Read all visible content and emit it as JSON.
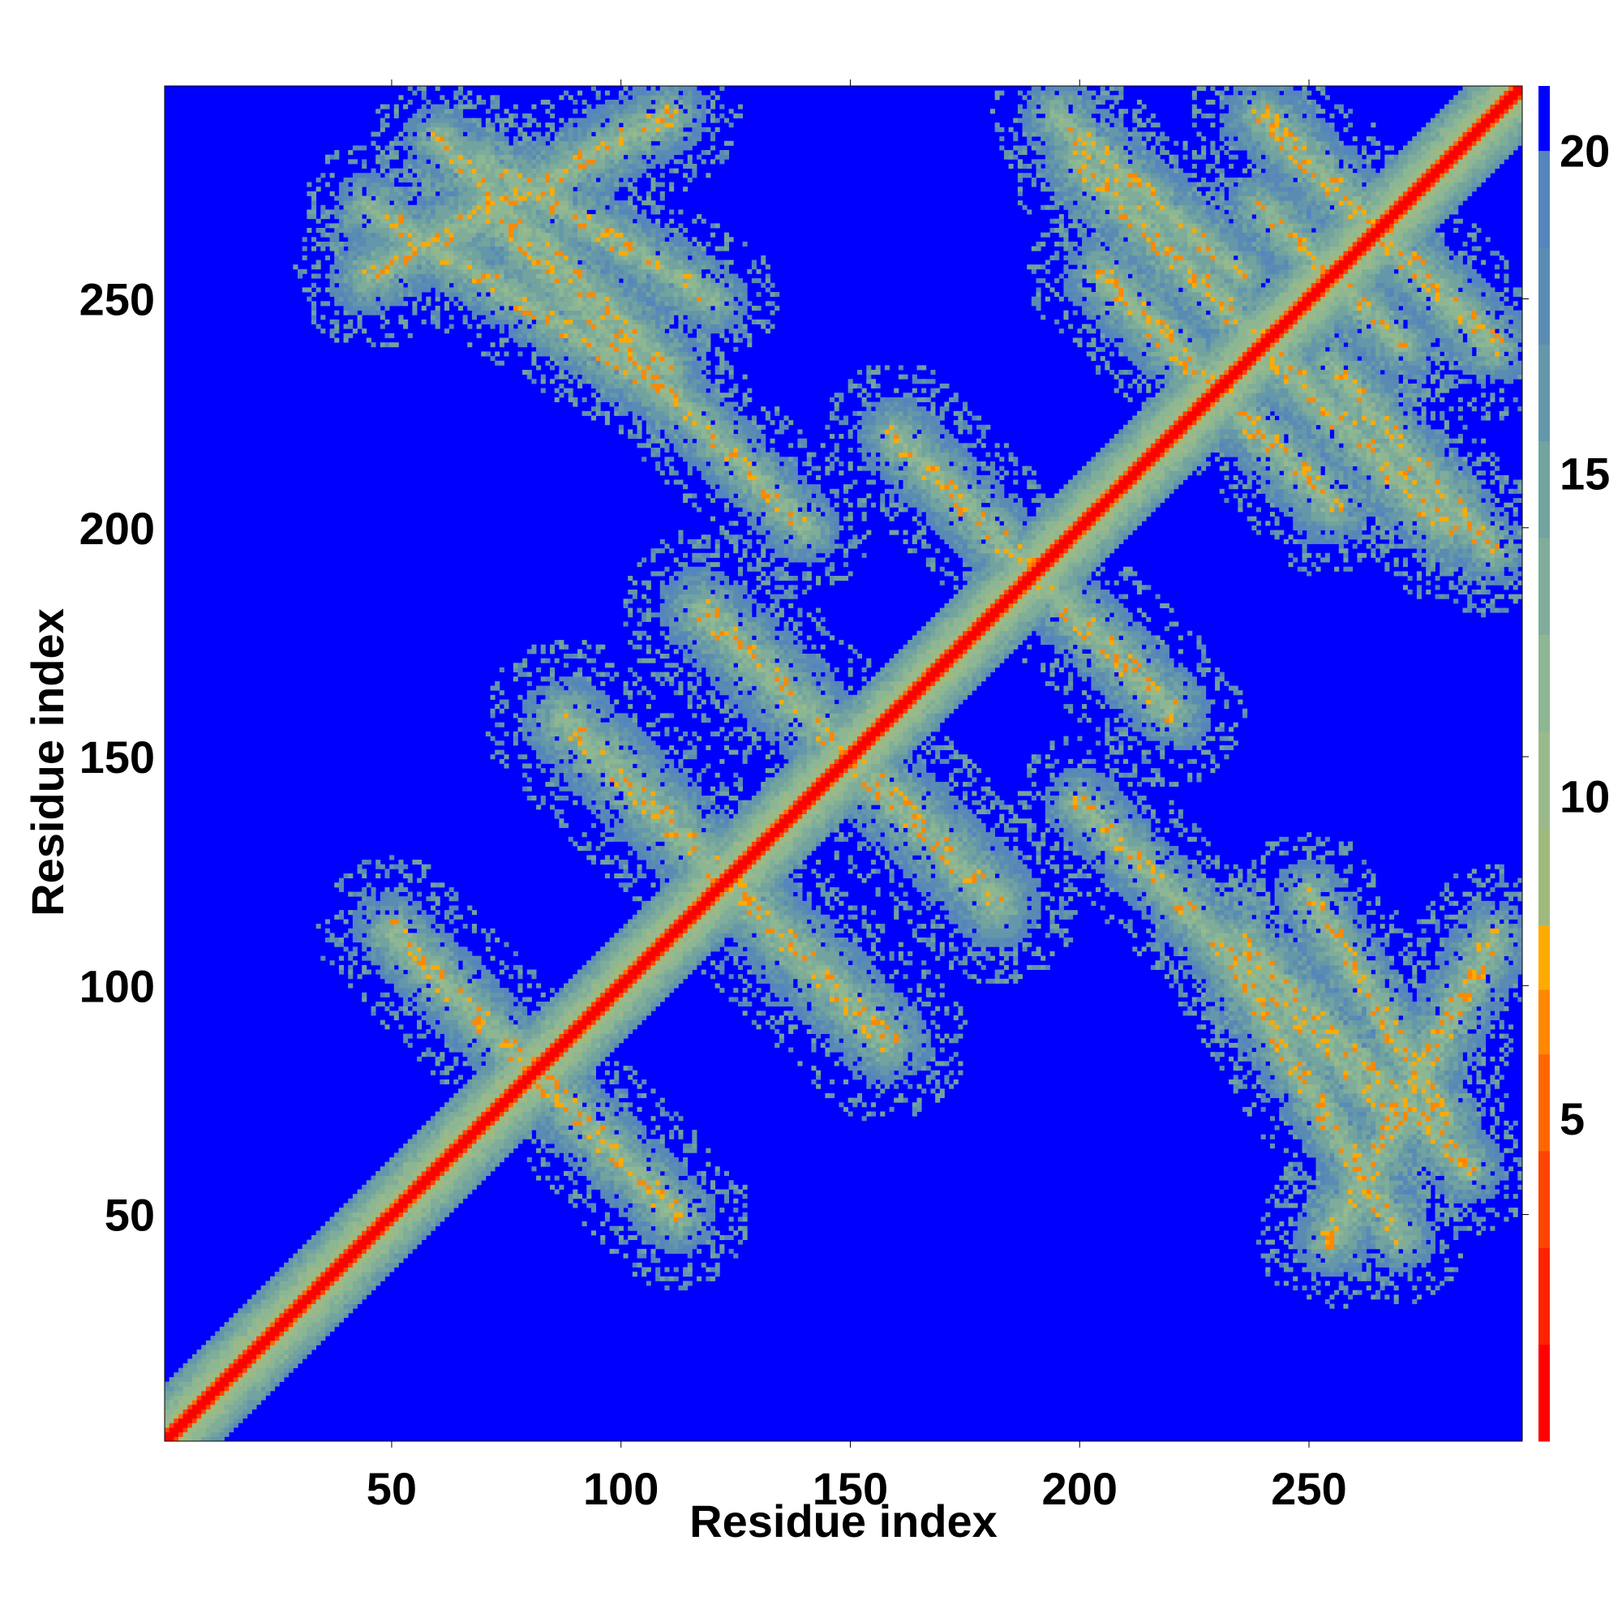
{
  "chart_data": {
    "type": "heatmap",
    "title": "",
    "xlabel": "Residue index",
    "ylabel": "Residue index",
    "n_residues": 296,
    "xlim": [
      1,
      296
    ],
    "ylim": [
      1,
      296
    ],
    "x_ticks": [
      50,
      100,
      150,
      200,
      250
    ],
    "y_ticks": [
      50,
      100,
      150,
      200,
      250
    ],
    "grid": false,
    "colorbar": {
      "placement": "right",
      "ticks": [
        5,
        10,
        15,
        20
      ],
      "range": [
        0,
        21
      ],
      "levels": [
        {
          "max": 1.5,
          "color": "#ff0000"
        },
        {
          "max": 3,
          "color": "#ff2200"
        },
        {
          "max": 4.5,
          "color": "#ff4400"
        },
        {
          "max": 6,
          "color": "#ff6600"
        },
        {
          "max": 7,
          "color": "#ff8800"
        },
        {
          "max": 8,
          "color": "#ffaa00"
        },
        {
          "max": 9.5,
          "color": "#9fba7c"
        },
        {
          "max": 11,
          "color": "#9ab98a"
        },
        {
          "max": 12.5,
          "color": "#8db693"
        },
        {
          "max": 14,
          "color": "#7fad9a"
        },
        {
          "max": 15.5,
          "color": "#72a39f"
        },
        {
          "max": 17,
          "color": "#6497aa"
        },
        {
          "max": 18.5,
          "color": "#5a8bb3"
        },
        {
          "max": 20,
          "color": "#5585bd"
        },
        {
          "max": 21,
          "color": "#0000ff"
        }
      ]
    },
    "background_distance": 21,
    "features": {
      "diagonal": {
        "core_color_value": 0.5
      },
      "contact_bands": [
        {
          "dir": "anti",
          "from": [
            50,
            112
          ],
          "to": [
            112,
            50
          ],
          "width": 9
        },
        {
          "dir": "anti",
          "from": [
            88,
            158
          ],
          "to": [
            158,
            88
          ],
          "width": 10
        },
        {
          "dir": "anti",
          "from": [
            118,
            182
          ],
          "to": [
            182,
            118
          ],
          "width": 10
        },
        {
          "dir": "anti",
          "from": [
            45,
            270
          ],
          "to": [
            110,
            230
          ],
          "width": 8
        },
        {
          "dir": "anti",
          "from": [
            160,
            220
          ],
          "to": [
            220,
            160
          ],
          "width": 9
        },
        {
          "dir": "anti",
          "from": [
            205,
            255
          ],
          "to": [
            255,
            205
          ],
          "width": 9
        },
        {
          "dir": "anti",
          "from": [
            240,
            270
          ],
          "to": [
            270,
            240
          ],
          "width": 8
        },
        {
          "dir": "anti",
          "from": [
            195,
            290
          ],
          "to": [
            235,
            255
          ],
          "width": 8
        },
        {
          "dir": "para",
          "from": [
            60,
            285
          ],
          "to": [
            110,
            235
          ],
          "width": 8
        },
        {
          "dir": "para",
          "from": [
            70,
            280
          ],
          "to": [
            120,
            250
          ],
          "width": 8
        },
        {
          "dir": "para",
          "from": [
            200,
            280
          ],
          "to": [
            280,
            200
          ],
          "width": 9
        },
        {
          "dir": "para",
          "from": [
            240,
            290
          ],
          "to": [
            290,
            240
          ],
          "width": 9
        },
        {
          "dir": "para",
          "from": [
            255,
            45
          ],
          "to": [
            290,
            110
          ],
          "width": 9
        },
        {
          "dir": "para",
          "from": [
            200,
            140
          ],
          "to": [
            270,
            70
          ],
          "width": 8
        }
      ]
    }
  }
}
